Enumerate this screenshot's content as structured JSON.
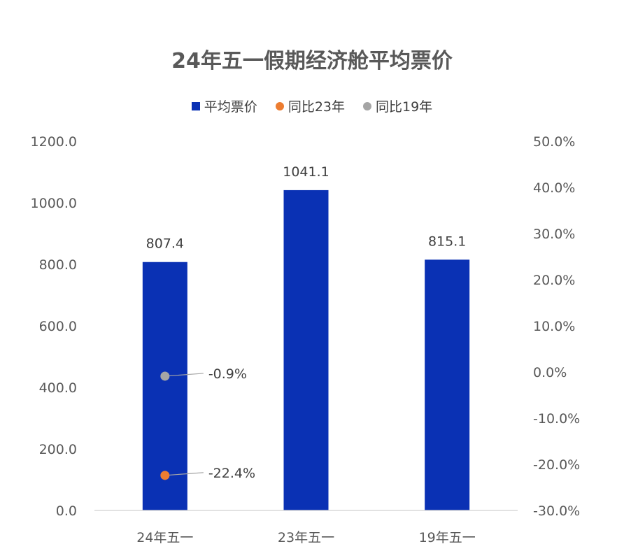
{
  "chart_data": {
    "type": "bar",
    "title": "24年五一假期经济舱平均票价",
    "categories": [
      "24年五一",
      "23年五一",
      "19年五一"
    ],
    "series": [
      {
        "name": "平均票价",
        "axis": "left",
        "values": [
          807.4,
          1041.1,
          815.1
        ],
        "labels": [
          "807.4",
          "1041.1",
          "815.1"
        ],
        "color": "#0a31b4"
      }
    ],
    "points": [
      {
        "name": "同比23年",
        "axis": "right",
        "category": "24年五一",
        "value": -22.4,
        "label": "-22.4%",
        "color": "#ed7d31"
      },
      {
        "name": "同比19年",
        "axis": "right",
        "category": "24年五一",
        "value": -0.9,
        "label": "-0.9%",
        "color": "#a5a5a5"
      }
    ],
    "y_left": {
      "range": [
        0,
        1200
      ],
      "ticks": [
        "0.0",
        "200.0",
        "400.0",
        "600.0",
        "800.0",
        "1000.0",
        "1200.0"
      ]
    },
    "y_right": {
      "range": [
        -30,
        50
      ],
      "ticks": [
        "-30.0%",
        "-20.0%",
        "-10.0%",
        "0.0%",
        "10.0%",
        "20.0%",
        "30.0%",
        "40.0%",
        "50.0%"
      ]
    },
    "grid": false,
    "legend_position": "top-center"
  },
  "legend": [
    {
      "label": "平均票价",
      "shape": "square",
      "color": "#0a31b4"
    },
    {
      "label": "同比23年",
      "shape": "dot",
      "color": "#ed7d31"
    },
    {
      "label": "同比19年",
      "shape": "dot",
      "color": "#a5a5a5"
    }
  ]
}
